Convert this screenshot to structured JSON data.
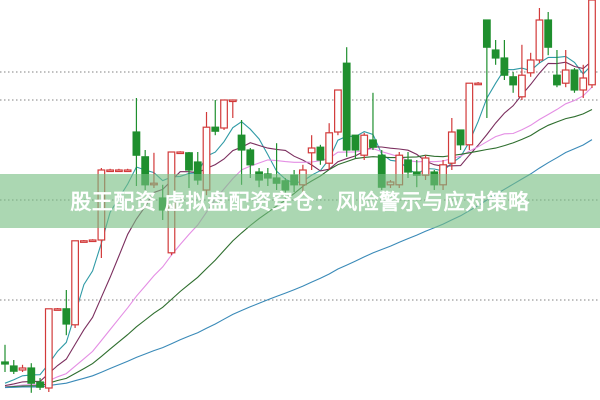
{
  "banner": {
    "title": "股王配资 虚拟盘配资穿仓：风险警示与应对策略"
  },
  "chart_data": {
    "type": "candlestick",
    "title": "",
    "xlabel": "",
    "ylabel": "",
    "ylim": [
      0,
      100
    ],
    "grid": "horizontal-dotted",
    "gridlines": [
      25,
      50,
      75,
      82
    ],
    "colors": {
      "up": "#d23a3a",
      "down": "#1f8f2e",
      "grid": "#9a9a9a",
      "ma": [
        "#2f9aa6",
        "#7b2e5e",
        "#e48ee4",
        "#2e6e2e",
        "#3a8ab8"
      ]
    },
    "moving_average_periods": [
      5,
      10,
      20,
      30,
      60
    ],
    "candles_ochl_fields": [
      "open",
      "close",
      "high",
      "low"
    ],
    "candles": [
      [
        9.5,
        9,
        13.8,
        7
      ],
      [
        8.5,
        7.2,
        10,
        6.5
      ],
      [
        7.5,
        8,
        8.8,
        7
      ],
      [
        8,
        4.2,
        9.2,
        1.8
      ],
      [
        4.5,
        3.2,
        5.5,
        2.5
      ],
      [
        3,
        22.8,
        22.8,
        2
      ],
      [
        22.8,
        22.8,
        23,
        22.5
      ],
      [
        22.8,
        19,
        27.5,
        16.2
      ],
      [
        18.8,
        39.8,
        39.8,
        18
      ],
      [
        39.8,
        39.8,
        40,
        39.5
      ],
      [
        39.8,
        40,
        40.2,
        39.5
      ],
      [
        40,
        57.5,
        58,
        35.5
      ],
      [
        57.5,
        57.5,
        57.8,
        57.2
      ],
      [
        57.5,
        57.5,
        57.8,
        57.2
      ],
      [
        57.5,
        57.5,
        57.8,
        57.2
      ],
      [
        67,
        61.2,
        75.5,
        53.5
      ],
      [
        60.8,
        53.8,
        62.5,
        52.5
      ],
      [
        53.8,
        54.2,
        61.8,
        53
      ],
      [
        50.5,
        47.5,
        53.8,
        45
      ],
      [
        36.8,
        62,
        62,
        36.2
      ],
      [
        62,
        62,
        62.2,
        61.8
      ],
      [
        61.8,
        57.5,
        62,
        53
      ],
      [
        59.5,
        55,
        62,
        53.8
      ],
      [
        52.5,
        68.2,
        72,
        51.2
      ],
      [
        68.2,
        67.2,
        75,
        66.2
      ],
      [
        68,
        75,
        75,
        67.5
      ],
      [
        75,
        75,
        75,
        70.5
      ],
      [
        66.2,
        62.5,
        70,
        53.8
      ],
      [
        62.5,
        58.8,
        63,
        55.5
      ],
      [
        57,
        55,
        58,
        53.2
      ],
      [
        56.5,
        55.5,
        58,
        53.5
      ],
      [
        55.5,
        54.2,
        64.2,
        52.5
      ],
      [
        54.8,
        52.5,
        55.5,
        50
      ],
      [
        56.2,
        53.8,
        57.5,
        52
      ],
      [
        53.8,
        57.5,
        58.8,
        51.2
      ],
      [
        61.8,
        63,
        66.2,
        57.5
      ],
      [
        63.2,
        60,
        63.8,
        58.8
      ],
      [
        59.2,
        66.8,
        69.2,
        57.5
      ],
      [
        67,
        77.5,
        77.5,
        66.2
      ],
      [
        84.2,
        62.5,
        88.2,
        60.8
      ],
      [
        66.2,
        62.5,
        66.2,
        60.5
      ],
      [
        61.2,
        66.2,
        66.8,
        60
      ],
      [
        65,
        63.2,
        76.8,
        62.5
      ],
      [
        61.2,
        53.2,
        62.5,
        52.5
      ],
      [
        53.8,
        54.5,
        55,
        53
      ],
      [
        53.8,
        61.2,
        62,
        53
      ],
      [
        60,
        57,
        62,
        55.5
      ],
      [
        57,
        56.2,
        60,
        53.2
      ],
      [
        56.2,
        60.5,
        61.2,
        55
      ],
      [
        57,
        53.8,
        57.5,
        52.5
      ],
      [
        53.8,
        58.8,
        60,
        52.5
      ],
      [
        59.2,
        67,
        70.5,
        57.5
      ],
      [
        67.5,
        63.8,
        67.5,
        62.5
      ],
      [
        63.8,
        79.2,
        79.2,
        62.5
      ],
      [
        79.2,
        79.2,
        79.5,
        79
      ],
      [
        95,
        88.2,
        95,
        70.5
      ],
      [
        87.5,
        85.5,
        90,
        83.8
      ],
      [
        85.5,
        81.2,
        90,
        80
      ],
      [
        80.8,
        78.8,
        82,
        76.8
      ],
      [
        75.8,
        81.2,
        88.8,
        75
      ],
      [
        81.8,
        85,
        86.8,
        80.8
      ],
      [
        85,
        95,
        98,
        84.2
      ],
      [
        95,
        88.2,
        97,
        86.2
      ],
      [
        81.2,
        78.8,
        87.5,
        78.2
      ],
      [
        79.2,
        82.5,
        87.5,
        78.2
      ],
      [
        82.5,
        77.5,
        83,
        76.8
      ],
      [
        77.5,
        80.5,
        83.8,
        75.5
      ],
      [
        78.8,
        100,
        100,
        78
      ]
    ]
  }
}
